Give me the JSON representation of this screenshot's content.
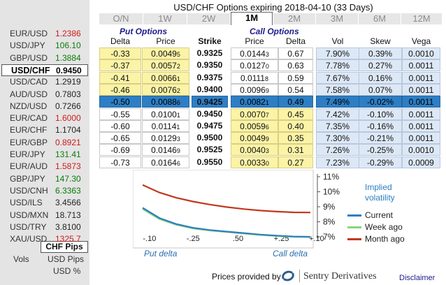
{
  "title": "USD/CHF Options expiring 2018-04-10 (33 Days)",
  "sidebar": {
    "pairs": [
      {
        "name": "EUR/USD",
        "price": "1.2386",
        "trend": "down"
      },
      {
        "name": "USD/JPY",
        "price": "106.10",
        "trend": "up"
      },
      {
        "name": "GBP/USD",
        "price": "1.3884",
        "trend": "up"
      },
      {
        "name": "USD/CHF",
        "price": "0.9450",
        "trend": "flat",
        "selected": true
      },
      {
        "name": "USD/CAD",
        "price": "1.2919",
        "trend": "flat"
      },
      {
        "name": "AUD/USD",
        "price": "0.7803",
        "trend": "flat"
      },
      {
        "name": "NZD/USD",
        "price": "0.7266",
        "trend": "flat"
      },
      {
        "name": "EUR/CAD",
        "price": "1.6000",
        "trend": "down"
      },
      {
        "name": "EUR/CHF",
        "price": "1.1704",
        "trend": "flat"
      },
      {
        "name": "EUR/GBP",
        "price": "0.8921",
        "trend": "down"
      },
      {
        "name": "EUR/JPY",
        "price": "131.41",
        "trend": "up"
      },
      {
        "name": "EUR/AUD",
        "price": "1.5873",
        "trend": "down"
      },
      {
        "name": "GBP/JPY",
        "price": "147.30",
        "trend": "up"
      },
      {
        "name": "USD/CNH",
        "price": "6.3363",
        "trend": "up"
      },
      {
        "name": "USD/ILS",
        "price": "3.4566",
        "trend": "flat"
      },
      {
        "name": "USD/MXN",
        "price": "18.713",
        "trend": "flat"
      },
      {
        "name": "USD/TRY",
        "price": "3.8100",
        "trend": "flat"
      },
      {
        "name": "XAU/USD",
        "price": "1325.7",
        "trend": "down"
      }
    ],
    "pips_label": "CHF Pips",
    "vols_label": "Vols",
    "usd_pips_label": "USD Pips",
    "usd_pct_label": "USD %"
  },
  "tabs": [
    "O/N",
    "1W",
    "2W",
    "1M",
    "2M",
    "3M",
    "6M",
    "12M"
  ],
  "active_tab": "1M",
  "headers": {
    "put_options": "Put Options",
    "call_options": "Call Options",
    "delta": "Delta",
    "price": "Price",
    "strike": "Strike",
    "call_price": "Price",
    "call_delta": "Delta",
    "vol": "Vol",
    "skew": "Skew",
    "vega": "Vega"
  },
  "rows": [
    {
      "put_delta": "-0.33",
      "put_price": "0.0049",
      "put_pip": "5",
      "strike": "0.9325",
      "call_price": "0.0144",
      "call_pip": "3",
      "call_delta": "0.67",
      "vol": "7.90%",
      "skew": "0.39%",
      "vega": "0.0010"
    },
    {
      "put_delta": "-0.37",
      "put_price": "0.0057",
      "put_pip": "2",
      "strike": "0.9350",
      "call_price": "0.0127",
      "call_pip": "0",
      "call_delta": "0.63",
      "vol": "7.78%",
      "skew": "0.27%",
      "vega": "0.0011"
    },
    {
      "put_delta": "-0.41",
      "put_price": "0.0066",
      "put_pip": "1",
      "strike": "0.9375",
      "call_price": "0.0111",
      "call_pip": "8",
      "call_delta": "0.59",
      "vol": "7.67%",
      "skew": "0.16%",
      "vega": "0.0011"
    },
    {
      "put_delta": "-0.46",
      "put_price": "0.0076",
      "put_pip": "2",
      "strike": "0.9400",
      "call_price": "0.0096",
      "call_pip": "9",
      "call_delta": "0.54",
      "vol": "7.58%",
      "skew": "0.07%",
      "vega": "0.0011"
    },
    {
      "put_delta": "-0.50",
      "put_price": "0.0088",
      "put_pip": "6",
      "strike": "0.9425",
      "call_price": "0.0082",
      "call_pip": "1",
      "call_delta": "0.49",
      "vol": "7.49%",
      "skew": "-0.02%",
      "vega": "0.0011"
    },
    {
      "put_delta": "-0.55",
      "put_price": "0.0100",
      "put_pip": "1",
      "strike": "0.9450",
      "call_price": "0.0070",
      "call_pip": "7",
      "call_delta": "0.45",
      "vol": "7.42%",
      "skew": "-0.10%",
      "vega": "0.0011"
    },
    {
      "put_delta": "-0.60",
      "put_price": "0.0114",
      "put_pip": "1",
      "strike": "0.9475",
      "call_price": "0.0059",
      "call_pip": "6",
      "call_delta": "0.40",
      "vol": "7.35%",
      "skew": "-0.16%",
      "vega": "0.0011"
    },
    {
      "put_delta": "-0.65",
      "put_price": "0.0129",
      "put_pip": "3",
      "strike": "0.9500",
      "call_price": "0.0049",
      "call_pip": "9",
      "call_delta": "0.35",
      "vol": "7.30%",
      "skew": "-0.21%",
      "vega": "0.0011"
    },
    {
      "put_delta": "-0.69",
      "put_price": "0.0146",
      "put_pip": "9",
      "strike": "0.9525",
      "call_price": "0.0040",
      "call_pip": "3",
      "call_delta": "0.31",
      "vol": "7.26%",
      "skew": "-0.25%",
      "vega": "0.0010"
    },
    {
      "put_delta": "-0.73",
      "put_price": "0.0164",
      "put_pip": "6",
      "strike": "0.9550",
      "call_price": "0.0033",
      "call_pip": "0",
      "call_delta": "0.27",
      "vol": "7.23%",
      "skew": "-0.29%",
      "vega": "0.0009"
    }
  ],
  "yellow_rows_put": [
    0,
    1,
    2,
    3
  ],
  "yellow_rows_call": [
    5,
    6,
    7,
    8,
    9
  ],
  "selected_row": 4,
  "chart_data": {
    "type": "line",
    "title": "Implied volatility",
    "x_tick_labels": [
      ".10",
      ".25",
      ".50",
      ".25",
      ".10"
    ],
    "x_tick_prefix": [
      "-",
      "-",
      "",
      "+",
      "+"
    ],
    "x_tick_positions": [
      -0.1,
      -0.25,
      0.5,
      0.25,
      0.1
    ],
    "xlabel_left": "Put delta",
    "xlabel_right": "Call delta",
    "y_tick_labels": [
      "11%",
      "10%",
      "9%",
      "8%",
      "7%"
    ],
    "ylim": [
      7,
      11
    ],
    "series": [
      {
        "name": "Current",
        "color": "#2e7fc2",
        "x": [
          0,
          0.1,
          0.2,
          0.3,
          0.4,
          0.5,
          0.6,
          0.7,
          0.8,
          0.9,
          1.0
        ],
        "values": [
          8.93,
          8.25,
          7.85,
          7.6,
          7.45,
          7.35,
          7.25,
          7.15,
          7.08,
          7.02,
          7.0
        ]
      },
      {
        "name": "Week ago",
        "color": "#88d67a",
        "x": [
          0,
          0.1,
          0.2,
          0.3,
          0.4,
          0.5,
          0.6,
          0.7,
          0.8,
          0.9,
          1.0
        ],
        "values": [
          8.85,
          8.18,
          7.8,
          7.55,
          7.42,
          7.32,
          7.22,
          7.12,
          7.05,
          7.0,
          6.98
        ]
      },
      {
        "name": "Month ago",
        "color": "#c0391e",
        "x": [
          0,
          0.1,
          0.2,
          0.3,
          0.4,
          0.5,
          0.6,
          0.7,
          0.8,
          0.9,
          1.0
        ],
        "values": [
          10.45,
          9.95,
          9.6,
          9.35,
          9.15,
          8.98,
          8.85,
          8.75,
          8.68,
          8.63,
          8.62
        ]
      }
    ]
  },
  "footer": {
    "prices_by": "Prices provided by",
    "brand": "Sentry Derivatives",
    "disclaimer": "Disclaimer"
  }
}
